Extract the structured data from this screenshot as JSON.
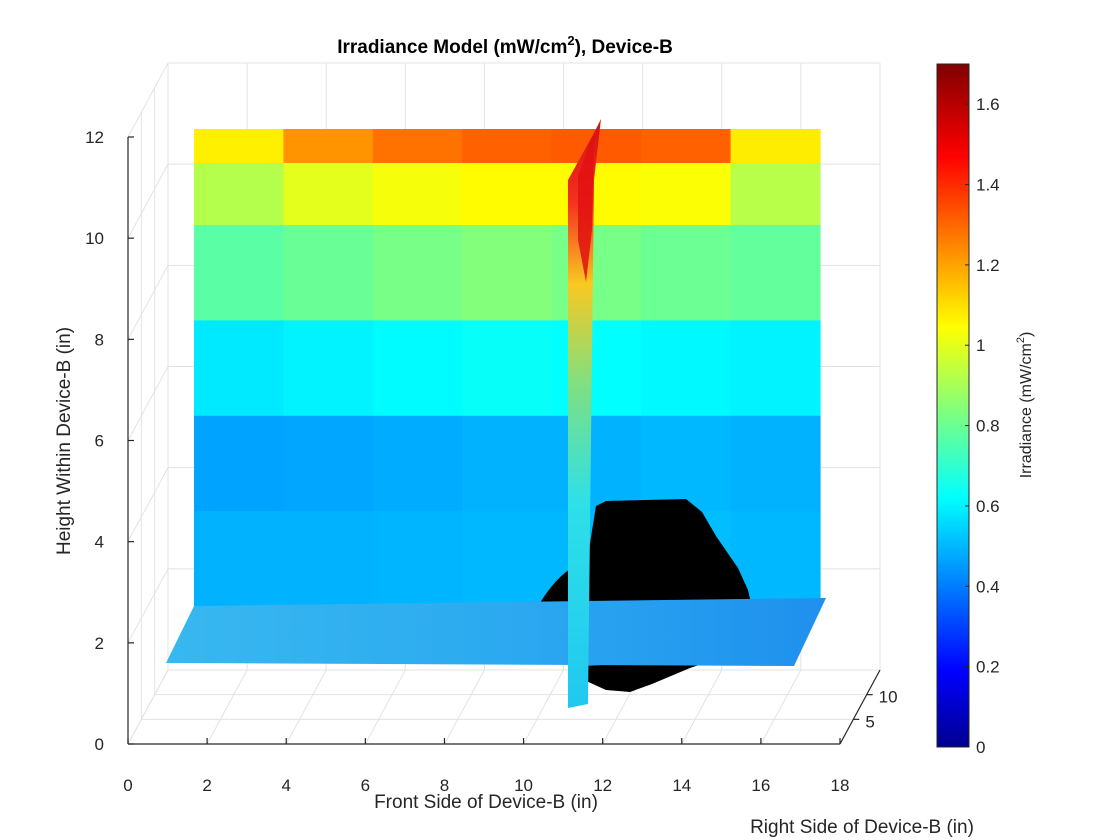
{
  "chart_data": {
    "type": "heatmap",
    "title_main": "Irradiance Model (mW/cm",
    "title_sup": "2",
    "title_end": "), Device-B",
    "xlabel": "Front Side of Device-B (in)",
    "ylabel": "Right Side of Device-B (in)",
    "zlabel": "Height Within Device-B (in)",
    "colorbar": {
      "label_main": "Irradiance (mW/cm",
      "label_sup": "2",
      "label_end": ")",
      "range": [
        0,
        1.7
      ],
      "ticks": [
        "0",
        "0.2",
        "0.4",
        "0.6",
        "0.8",
        "1",
        "1.2",
        "1.4",
        "1.6"
      ],
      "colormap": "jet"
    },
    "x_ticks": [
      "0",
      "2",
      "4",
      "6",
      "8",
      "10",
      "12",
      "14",
      "16",
      "18"
    ],
    "y_ticks": [
      "5",
      "10"
    ],
    "z_ticks": [
      "0",
      "2",
      "4",
      "6",
      "8",
      "10",
      "12"
    ],
    "xlim": [
      0,
      18
    ],
    "ylim": [
      0,
      15
    ],
    "zlim": [
      0,
      12
    ],
    "grid": true,
    "slices": {
      "back_plane": {
        "x_range": [
          1.5,
          17.5
        ],
        "z_range": [
          2,
          12
        ],
        "row_heights": [
          2,
          4,
          6,
          8,
          10,
          11.3,
          12
        ],
        "irradiance_rows": [
          [
            0.5,
            0.5,
            0.5,
            0.5,
            0.5,
            0.5,
            0.5
          ],
          [
            0.48,
            0.48,
            0.49,
            0.5,
            0.5,
            0.52,
            0.5
          ],
          [
            0.45,
            0.46,
            0.47,
            0.48,
            0.48,
            0.48,
            0.48
          ],
          [
            0.72,
            0.74,
            0.76,
            0.78,
            0.76,
            0.74,
            0.72
          ],
          [
            0.82,
            0.85,
            0.88,
            0.9,
            0.88,
            0.86,
            0.85
          ],
          [
            1.02,
            1.15,
            1.18,
            1.2,
            1.22,
            1.22,
            1.0
          ],
          [
            1.12,
            1.3,
            1.38,
            1.42,
            1.42,
            1.4,
            1.15
          ]
        ]
      },
      "floor_plane": {
        "z": 2,
        "irradiance": 0.5
      },
      "side_plane": {
        "x": 11.5,
        "peak_irradiance": 1.5,
        "low_irradiance": 0.55
      }
    },
    "device_object": {
      "color": "#000000"
    }
  }
}
